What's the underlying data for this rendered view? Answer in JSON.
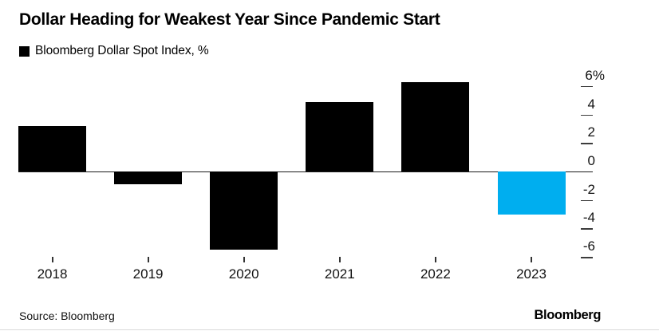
{
  "header": {
    "title": "Dollar Heading for Weakest Year Since Pandemic Start",
    "legend": {
      "swatch_color": "#000000",
      "label": "Bloomberg Dollar Spot Index, %"
    }
  },
  "chart_data": {
    "type": "bar",
    "title": "Dollar Heading for Weakest Year Since Pandemic Start",
    "series_name": "Bloomberg Dollar Spot Index, %",
    "categories": [
      "2018",
      "2019",
      "2020",
      "2021",
      "2022",
      "2023"
    ],
    "values": [
      3.2,
      -0.9,
      -5.5,
      4.9,
      6.3,
      -3.0
    ],
    "unit": "%",
    "ylim": [
      -6.5,
      6.6
    ],
    "yticks": [
      6,
      4,
      2,
      0,
      -2,
      -4,
      -6
    ],
    "ytick_labels": [
      "6%",
      "4",
      "2",
      "0",
      "-2",
      "-4",
      "-6"
    ],
    "axis_side": "right",
    "grid": false,
    "highlight_category": "2023",
    "bar_color_default": "#000000",
    "bar_color_highlight": "#00AEEF",
    "xlabel": "",
    "ylabel": ""
  },
  "footer": {
    "source": "Source: Bloomberg",
    "brand": "Bloomberg"
  }
}
